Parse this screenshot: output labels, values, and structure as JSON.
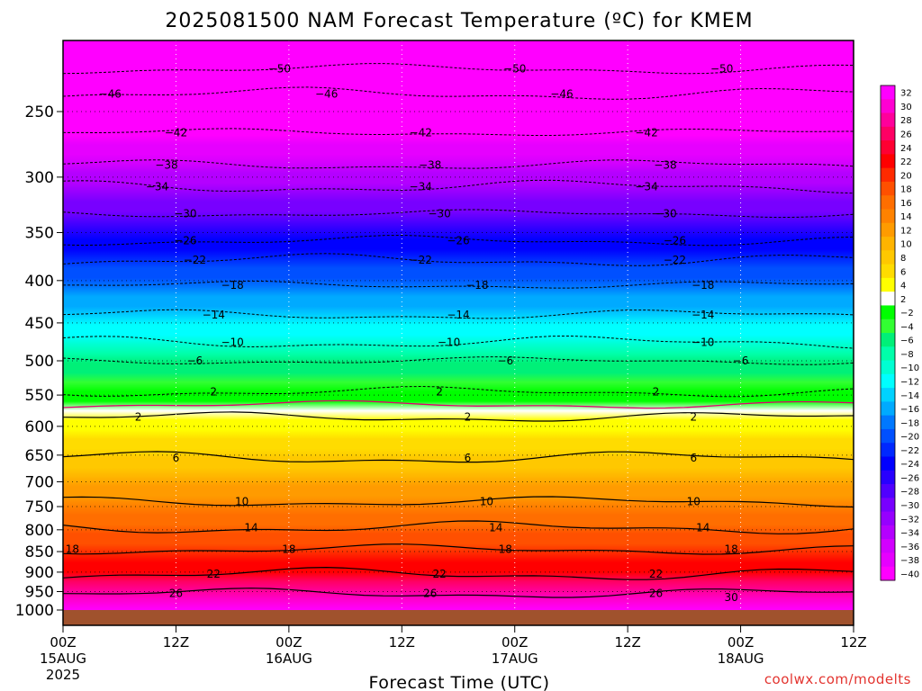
{
  "chart_data": {
    "type": "heatmap",
    "title": "2025081500 NAM Forecast Temperature (ºC) for KMEM",
    "xlabel": "Forecast Time (UTC)",
    "ylabel": "",
    "credit": "coolwx.com/modelts",
    "x_hours_range": [
      0,
      84
    ],
    "y_pressure_range_hpa": [
      1000,
      200
    ],
    "y_scale": "log-pressure",
    "y_ticks": [
      250,
      300,
      350,
      400,
      450,
      500,
      550,
      600,
      650,
      700,
      750,
      800,
      850,
      900,
      950,
      1000
    ],
    "x_ticks": [
      {
        "hour": 0,
        "time": "00Z",
        "date": "15AUG",
        "year": "2025"
      },
      {
        "hour": 12,
        "time": "12Z",
        "date": "",
        "year": ""
      },
      {
        "hour": 24,
        "time": "00Z",
        "date": "16AUG",
        "year": ""
      },
      {
        "hour": 36,
        "time": "12Z",
        "date": "",
        "year": ""
      },
      {
        "hour": 48,
        "time": "00Z",
        "date": "17AUG",
        "year": ""
      },
      {
        "hour": 60,
        "time": "12Z",
        "date": "",
        "year": ""
      },
      {
        "hour": 72,
        "time": "00Z",
        "date": "18AUG",
        "year": ""
      },
      {
        "hour": 84,
        "time": "12Z",
        "date": "",
        "year": ""
      }
    ],
    "grid": "dotted",
    "legend": "colorbar-right",
    "colorbar": {
      "min": -40,
      "max": 32,
      "step": 2,
      "labels": [
        "32",
        "30",
        "28",
        "26",
        "24",
        "22",
        "20",
        "18",
        "16",
        "14",
        "12",
        "10",
        "8",
        "6",
        "4",
        "2",
        "−2",
        "−4",
        "−6",
        "−8",
        "−10",
        "−12",
        "−14",
        "−16",
        "−18",
        "−20",
        "−22",
        "−24",
        "−26",
        "−28",
        "−30",
        "−32",
        "−34",
        "−36",
        "−38",
        "−40"
      ]
    },
    "level_labels": [
      {
        "v": 2,
        "p": 585,
        "h": [
          8,
          43,
          67
        ]
      },
      {
        "v": 6,
        "p": 655,
        "h": [
          12,
          43,
          67
        ]
      },
      {
        "v": 10,
        "p": 740,
        "h": [
          19,
          45,
          67
        ]
      },
      {
        "v": 14,
        "p": 795,
        "h": [
          20,
          46,
          68
        ]
      },
      {
        "v": 18,
        "p": 845,
        "h": [
          1,
          24,
          47,
          71
        ]
      },
      {
        "v": 22,
        "p": 905,
        "h": [
          16,
          40,
          63
        ]
      },
      {
        "v": 26,
        "p": 955,
        "h": [
          12,
          39,
          63
        ]
      },
      {
        "v": 30,
        "p": 965,
        "h": [
          71
        ]
      },
      {
        "v": 2,
        "p": 545,
        "h": [
          16,
          40,
          63
        ]
      },
      {
        "v": -6,
        "p": 500,
        "h": [
          14,
          47,
          72
        ]
      },
      {
        "v": -10,
        "p": 475,
        "h": [
          18,
          41,
          68
        ]
      },
      {
        "v": -14,
        "p": 440,
        "h": [
          16,
          42,
          68
        ]
      },
      {
        "v": -18,
        "p": 405,
        "h": [
          18,
          44,
          68
        ]
      },
      {
        "v": -22,
        "p": 378,
        "h": [
          14,
          38,
          65
        ]
      },
      {
        "v": -26,
        "p": 358,
        "h": [
          13,
          42,
          65
        ]
      },
      {
        "v": -30,
        "p": 332,
        "h": [
          13,
          40,
          64
        ]
      },
      {
        "v": -34,
        "p": 308,
        "h": [
          10,
          38,
          62
        ]
      },
      {
        "v": -38,
        "p": 290,
        "h": [
          11,
          39,
          64
        ]
      },
      {
        "v": -42,
        "p": 265,
        "h": [
          12,
          38,
          62
        ]
      },
      {
        "v": -46,
        "p": 238,
        "h": [
          5,
          28,
          53
        ]
      },
      {
        "v": -50,
        "p": 222,
        "h": [
          23,
          48,
          70
        ]
      }
    ]
  }
}
